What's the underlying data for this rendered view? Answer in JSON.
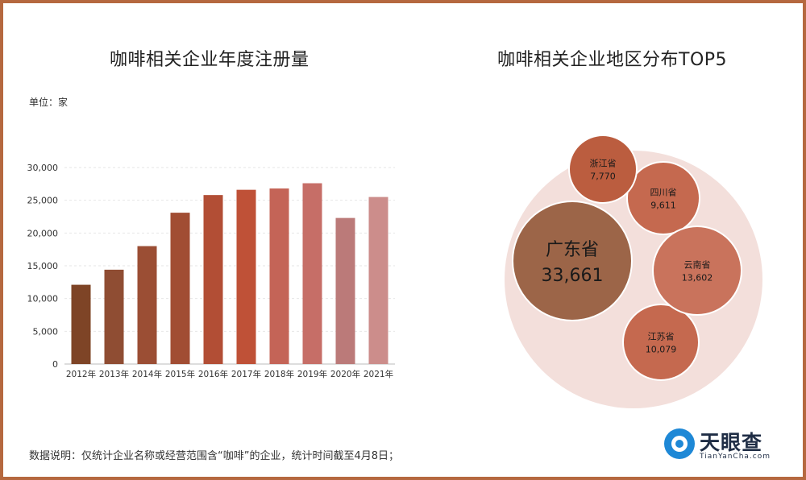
{
  "left_title": "咖啡相关企业年度注册量",
  "right_title": "咖啡相关企业地区分布TOP5",
  "unit_label": "单位：家",
  "footnote": "数据说明：仅统计企业名称或经营范围含“咖啡”的企业，统计时间截至4月8日；",
  "logo": {
    "name": "天眼查",
    "url": "TianYanCha.com"
  },
  "chart_data": [
    {
      "type": "bar",
      "categories": [
        "2012年",
        "2013年",
        "2014年",
        "2015年",
        "2016年",
        "2017年",
        "2018年",
        "2019年",
        "2020年",
        "2021年"
      ],
      "values": [
        12100,
        14400,
        18000,
        23100,
        25800,
        26600,
        26800,
        27600,
        22300,
        25500
      ],
      "ylim": [
        0,
        30000
      ],
      "yticks": [
        0,
        5000,
        10000,
        15000,
        20000,
        25000,
        30000
      ],
      "ytick_labels": [
        "0",
        "5,000",
        "10,000",
        "15,000",
        "20,000",
        "25,000",
        "30,000"
      ],
      "grid": true,
      "colors": [
        "#7e4426",
        "#8f4d33",
        "#9b4e34",
        "#a14d33",
        "#b24e35",
        "#bf5137",
        "#c46457",
        "#c66e67",
        "#bb7a79",
        "#cc8d8b"
      ]
    },
    {
      "type": "bubble",
      "items": [
        {
          "name": "广东省",
          "value": 33661,
          "label": "33,661",
          "color": "#9c6548"
        },
        {
          "name": "江苏省",
          "value": 10079,
          "label": "10,079",
          "color": "#c5694f"
        },
        {
          "name": "四川省",
          "value": 9611,
          "label": "9,611",
          "color": "#c5694f"
        },
        {
          "name": "云南省",
          "value": 13602,
          "label": "13,602",
          "color": "#c9735c"
        },
        {
          "name": "浙江省",
          "value": 7770,
          "label": "7,770",
          "color": "#bb5d3f"
        }
      ],
      "background_color": "#f3dfdb"
    }
  ]
}
